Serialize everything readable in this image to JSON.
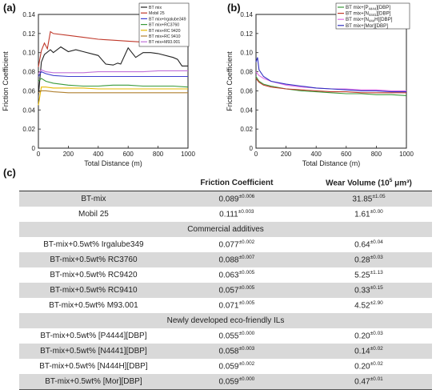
{
  "panel_a_tag": "(a)",
  "panel_b_tag": "(b)",
  "panel_c_tag": "(c)",
  "chart_data": [
    {
      "type": "line",
      "xlabel": "Total Distance (m)",
      "ylabel": "Friction Coefficient",
      "xlim": [
        0,
        1000
      ],
      "ylim": [
        0,
        0.14
      ],
      "xticks": [
        "0",
        "200",
        "400",
        "600",
        "800",
        "1000"
      ],
      "yticks": [
        "0",
        "0.02",
        "0.04",
        "0.06",
        "0.08",
        "0.10",
        "0.12",
        "0.14"
      ],
      "grid": false,
      "legend_position": "top-right",
      "series": [
        {
          "name": "BT mix",
          "color": "#222222",
          "x": [
            0,
            20,
            40,
            80,
            100,
            150,
            200,
            250,
            300,
            400,
            450,
            500,
            530,
            550,
            600,
            650,
            700,
            750,
            800,
            900,
            930,
            960,
            1000
          ],
          "y": [
            0.055,
            0.09,
            0.098,
            0.103,
            0.1,
            0.106,
            0.101,
            0.103,
            0.101,
            0.097,
            0.088,
            0.087,
            0.089,
            0.088,
            0.105,
            0.095,
            0.1,
            0.1,
            0.099,
            0.095,
            0.093,
            0.086,
            0.086
          ]
        },
        {
          "name": "Mobil 25",
          "color": "#c0392b",
          "x": [
            0,
            20,
            40,
            60,
            80,
            100,
            200,
            300,
            400,
            500,
            600,
            700,
            800,
            900,
            1000
          ],
          "y": [
            0.085,
            0.102,
            0.11,
            0.104,
            0.122,
            0.12,
            0.118,
            0.116,
            0.114,
            0.113,
            0.112,
            0.111,
            0.11,
            0.109,
            0.108
          ]
        },
        {
          "name": "BT mix+Irgalube349",
          "color": "#4040d0",
          "x": [
            0,
            20,
            50,
            100,
            200,
            300,
            400,
            500,
            600,
            700,
            800,
            900,
            1000
          ],
          "y": [
            0.075,
            0.08,
            0.078,
            0.076,
            0.075,
            0.075,
            0.075,
            0.075,
            0.075,
            0.075,
            0.075,
            0.075,
            0.075
          ]
        },
        {
          "name": "BT mix+RC3760",
          "color": "#3a9a3a",
          "x": [
            0,
            20,
            50,
            100,
            200,
            300,
            400,
            500,
            600,
            700,
            800,
            900,
            1000
          ],
          "y": [
            0.07,
            0.073,
            0.07,
            0.068,
            0.066,
            0.065,
            0.065,
            0.066,
            0.066,
            0.065,
            0.065,
            0.065,
            0.064
          ]
        },
        {
          "name": "BT mix+RC 9420",
          "color": "#e6b800",
          "x": [
            0,
            20,
            50,
            100,
            200,
            300,
            400,
            500,
            600,
            700,
            800,
            900,
            1000
          ],
          "y": [
            0.045,
            0.064,
            0.064,
            0.063,
            0.063,
            0.063,
            0.062,
            0.062,
            0.062,
            0.062,
            0.062,
            0.062,
            0.062
          ]
        },
        {
          "name": "BT mix+RC 9410",
          "color": "#b08030",
          "x": [
            0,
            20,
            50,
            100,
            200,
            300,
            400,
            500,
            600,
            700,
            800,
            900,
            1000
          ],
          "y": [
            0.058,
            0.06,
            0.06,
            0.059,
            0.058,
            0.058,
            0.058,
            0.058,
            0.058,
            0.058,
            0.058,
            0.058,
            0.058
          ]
        },
        {
          "name": "BT mix+M93.001",
          "color": "#c070d8",
          "x": [
            0,
            20,
            50,
            100,
            200,
            300,
            400,
            500,
            600,
            700,
            800,
            900,
            1000
          ],
          "y": [
            0.078,
            0.082,
            0.08,
            0.079,
            0.079,
            0.079,
            0.08,
            0.08,
            0.08,
            0.08,
            0.081,
            0.081,
            0.081
          ]
        }
      ]
    },
    {
      "type": "line",
      "xlabel": "Total Distance (m)",
      "ylabel": "Friction Coefficient",
      "xlim": [
        0,
        1000
      ],
      "ylim": [
        0,
        0.14
      ],
      "xticks": [
        "0",
        "200",
        "400",
        "600",
        "800",
        "1000"
      ],
      "yticks": [
        "0",
        "0.02",
        "0.04",
        "0.06",
        "0.08",
        "0.10",
        "0.12",
        "0.14"
      ],
      "grid": false,
      "legend_position": "top-right",
      "series": [
        {
          "name_main": "BT mix+[P",
          "name_sub": "4444",
          "name_tail": "][DBP]",
          "color": "#3a9a3a",
          "x": [
            0,
            20,
            50,
            100,
            200,
            300,
            400,
            500,
            600,
            700,
            800,
            900,
            1000
          ],
          "y": [
            0.075,
            0.07,
            0.067,
            0.065,
            0.062,
            0.06,
            0.059,
            0.058,
            0.057,
            0.057,
            0.056,
            0.056,
            0.055
          ]
        },
        {
          "name_main": "BT mix+[N",
          "name_sub": "4441",
          "name_tail": "][DBP]",
          "color": "#c0392b",
          "x": [
            0,
            20,
            50,
            100,
            200,
            300,
            400,
            500,
            600,
            700,
            800,
            900,
            1000
          ],
          "y": [
            0.073,
            0.069,
            0.066,
            0.064,
            0.062,
            0.061,
            0.06,
            0.059,
            0.059,
            0.058,
            0.058,
            0.058,
            0.058
          ]
        },
        {
          "name_main": "BT mix+[N",
          "name_sub": "444",
          "name_tail": "H][DBP]",
          "color": "#e070e8",
          "x": [
            0,
            20,
            50,
            100,
            200,
            300,
            400,
            500,
            600,
            700,
            800,
            900,
            1000
          ],
          "y": [
            0.08,
            0.076,
            0.073,
            0.07,
            0.066,
            0.064,
            0.063,
            0.062,
            0.062,
            0.061,
            0.061,
            0.06,
            0.06
          ]
        },
        {
          "name_main": "BT mix+[Mor][DBP]",
          "name_sub": "",
          "name_tail": "",
          "color": "#3030c0",
          "x": [
            0,
            10,
            20,
            50,
            100,
            200,
            300,
            400,
            500,
            600,
            700,
            800,
            900,
            1000
          ],
          "y": [
            0.09,
            0.095,
            0.082,
            0.075,
            0.07,
            0.067,
            0.065,
            0.063,
            0.062,
            0.061,
            0.06,
            0.06,
            0.059,
            0.059
          ]
        }
      ]
    },
    {
      "type": "table",
      "header": {
        "col1": "",
        "col2": "Friction Coefficient",
        "col3_main": "Wear Volume (10",
        "col3_sup": "5",
        "col3_tail": " μm³)"
      },
      "rows": [
        {
          "kind": "data",
          "shade": true,
          "name": "BT-mix",
          "friction": "0.089",
          "friction_err": "±0.006",
          "wear": "31.85",
          "wear_err": "±1.05"
        },
        {
          "kind": "data",
          "shade": false,
          "name": "Mobil 25",
          "friction": "0.111",
          "friction_err": "±0.003",
          "wear": "1.61",
          "wear_err": "±0.00"
        },
        {
          "kind": "section",
          "name": "Commercial additives"
        },
        {
          "kind": "data",
          "shade": false,
          "name": "BT-mix+0.5wt% Irgalube349",
          "friction": "0.077",
          "friction_err": "±0.002",
          "wear": "0.64",
          "wear_err": "±0.04"
        },
        {
          "kind": "data",
          "shade": true,
          "name": "BT-mix+0.5wt% RC3760",
          "friction": "0.088",
          "friction_err": "±0.007",
          "wear": "0.28",
          "wear_err": "±0.03"
        },
        {
          "kind": "data",
          "shade": false,
          "name": "BT-mix+0.5wt% RC9420",
          "friction": "0.063",
          "friction_err": "±0.005",
          "wear": "5.25",
          "wear_err": "±1.13"
        },
        {
          "kind": "data",
          "shade": true,
          "name": "BT-mix+0.5wt% RC9410",
          "friction": "0.057",
          "friction_err": "±0.005",
          "wear": "0.33",
          "wear_err": "±0.15"
        },
        {
          "kind": "data",
          "shade": false,
          "name": "BT-mix+0.5wt% M93.001",
          "friction": "0.071",
          "friction_err": "±0.005",
          "wear": "4.52",
          "wear_err": "±2.90"
        },
        {
          "kind": "section",
          "name": "Newly developed eco-friendly ILs"
        },
        {
          "kind": "data",
          "shade": false,
          "name": "BT-mix+0.5wt% [P4444][DBP]",
          "friction": "0.055",
          "friction_err": "±0.000",
          "wear": "0.20",
          "wear_err": "±0.03"
        },
        {
          "kind": "data",
          "shade": true,
          "name": "BT-mix+0.5wt% [N4441][DBP]",
          "friction": "0.058",
          "friction_err": "±0.003",
          "wear": "0.14",
          "wear_err": "±0.02"
        },
        {
          "kind": "data",
          "shade": false,
          "name": "BT-mix+0.5wt% [N444H][DBP]",
          "friction": "0.059",
          "friction_err": "±0.002",
          "wear": "0.20",
          "wear_err": "±0.02"
        },
        {
          "kind": "data",
          "shade": true,
          "name": "BT-mix+0.5wt% [Mor][DBP]",
          "friction": "0.059",
          "friction_err": "±0.000",
          "wear": "0.47",
          "wear_err": "±0.01"
        }
      ]
    }
  ]
}
